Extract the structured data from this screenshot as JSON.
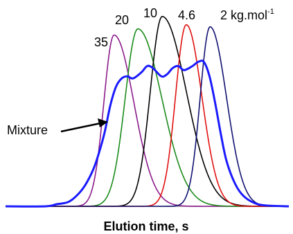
{
  "chart_data": {
    "type": "line",
    "title": "",
    "xlabel": "Elution time, s",
    "ylabel": "",
    "xlim": [
      0,
      100
    ],
    "ylim": [
      0,
      1.0
    ],
    "grid": false,
    "legend": "none",
    "series": [
      {
        "label": "35",
        "color": "#8b1a8b",
        "center": 38.3,
        "sigma_left": 3.6,
        "sigma_right": 7.0,
        "peak": 0.83
      },
      {
        "label": "20",
        "color": "#1a8a1a",
        "center": 46.7,
        "sigma_left": 4.5,
        "sigma_right": 8.5,
        "peak": 0.86
      },
      {
        "label": "10",
        "color": "#000000",
        "center": 55.3,
        "sigma_left": 4.2,
        "sigma_right": 8.5,
        "peak": 0.92
      },
      {
        "label": "4.6",
        "color": "#e01010",
        "center": 63.8,
        "sigma_left": 3.8,
        "sigma_right": 5.5,
        "peak": 0.88
      },
      {
        "label": "2 kg.mol",
        "superscript": "-1",
        "color": "#101070",
        "center": 72.2,
        "sigma_left": 3.5,
        "sigma_right": 5.8,
        "peak": 0.87
      }
    ],
    "mixture": {
      "label": "Mixture",
      "color": "#1a1aff",
      "x": [
        0,
        14,
        18,
        22,
        25,
        28,
        31,
        33,
        35,
        37,
        39,
        41,
        43,
        45,
        48,
        50,
        52,
        55,
        57,
        59,
        61,
        63,
        66,
        68,
        70,
        72,
        74,
        76,
        78,
        81,
        84,
        88,
        92,
        100
      ],
      "y": [
        0,
        0,
        0.01,
        0.02,
        0.05,
        0.1,
        0.18,
        0.26,
        0.36,
        0.49,
        0.58,
        0.62,
        0.63,
        0.62,
        0.65,
        0.68,
        0.67,
        0.63,
        0.64,
        0.67,
        0.68,
        0.66,
        0.68,
        0.7,
        0.7,
        0.63,
        0.5,
        0.35,
        0.22,
        0.11,
        0.05,
        0.015,
        0.004,
        0
      ]
    },
    "annotations": [
      {
        "text": "Mixture",
        "points_to": "mixture"
      }
    ]
  }
}
